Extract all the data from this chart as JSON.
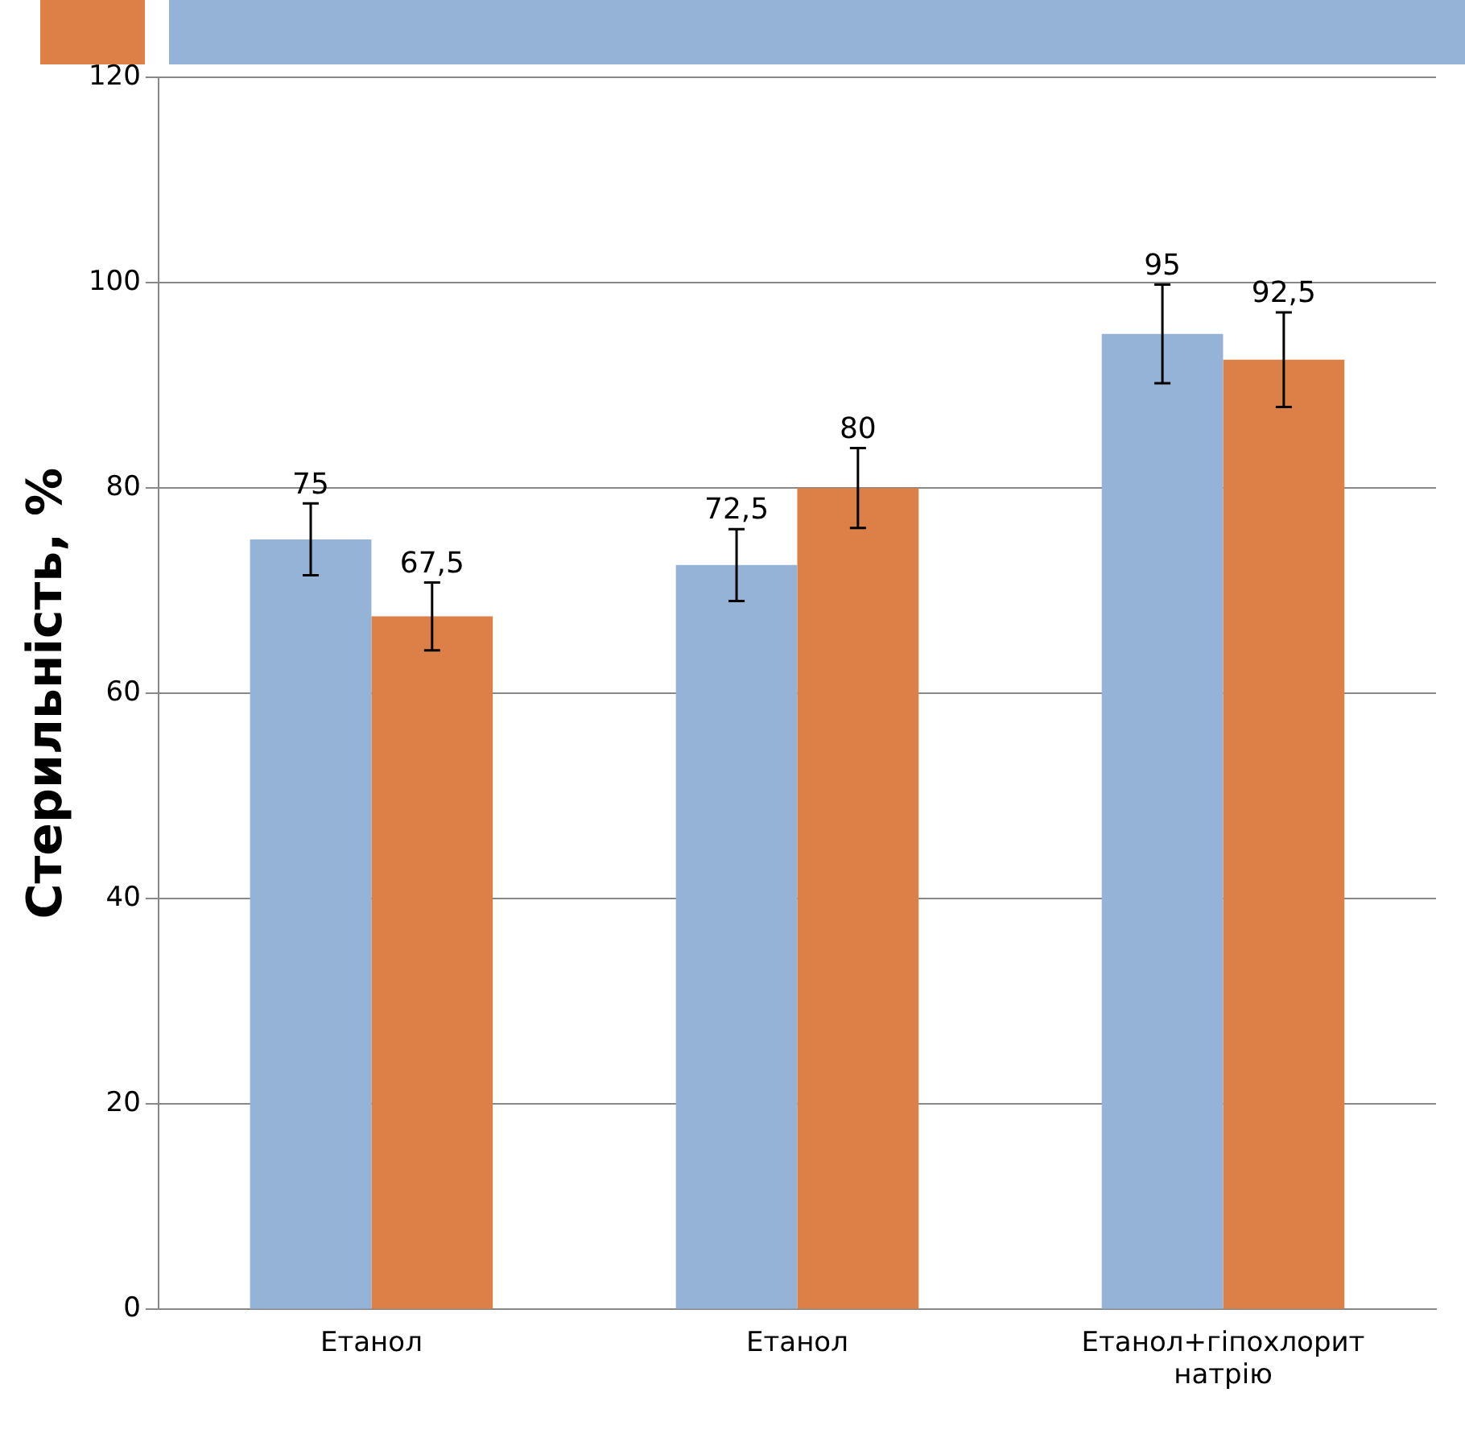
{
  "chart_data": {
    "type": "bar",
    "ylabel": "Стерильність, %",
    "categories": [
      "Етанол",
      "Етанол",
      "Етанол+гіпохлорит натрію"
    ],
    "series": [
      {
        "color": "#95b3d7",
        "values": [
          75,
          72.5,
          95
        ],
        "errors": [
          3.5,
          3.5,
          4.8
        ],
        "value_labels": [
          "75",
          "72,5",
          "95"
        ]
      },
      {
        "color": "#dd8047",
        "values": [
          67.5,
          80,
          92.5
        ],
        "errors": [
          3.3,
          3.9,
          4.6
        ],
        "value_labels": [
          "67,5",
          "80",
          "92,5"
        ]
      }
    ],
    "ylim": [
      0,
      120
    ],
    "yticks": [
      0,
      20,
      40,
      60,
      80,
      100,
      120
    ],
    "grid": "y",
    "legend": false
  }
}
